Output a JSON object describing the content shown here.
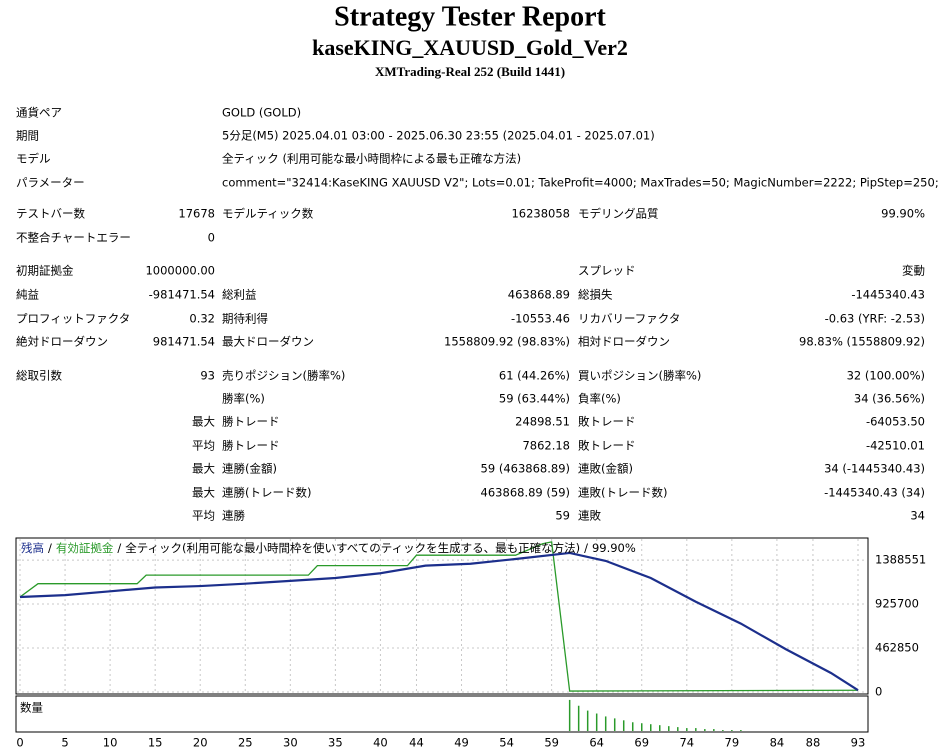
{
  "header": {
    "title": "Strategy Tester Report",
    "subtitle": "kaseKING_XAUUSD_Gold_Ver2",
    "server": "XMTrading-Real 252 (Build 1441)"
  },
  "info": [
    {
      "label": "通貨ペア",
      "value": "GOLD (GOLD)"
    },
    {
      "label": "期間",
      "value": "5分足(M5) 2025.04.01 03:00 - 2025.06.30 23:55 (2025.04.01 - 2025.07.01)"
    },
    {
      "label": "モデル",
      "value": "全ティック (利用可能な最小時間枠による最も正確な方法)"
    },
    {
      "label": "パラメーター",
      "value": "comment=\"32414:KaseKING XAUUSD V2\"; Lots=0.01; TakeProfit=4000; MaxTrades=50; MagicNumber=2222; PipStep=250;"
    }
  ],
  "table": {
    "rows": [
      [
        "テストバー数",
        "17678",
        "モデルティック数",
        "16238058",
        "モデリング品質",
        "99.90%"
      ],
      [
        "不整合チャートエラー",
        "0",
        null,
        null,
        null,
        null
      ],
      [
        "初期証拠金",
        "1000000.00",
        null,
        null,
        "スプレッド",
        "変動"
      ],
      [
        "純益",
        "-981471.54",
        "総利益",
        "463868.89",
        "総損失",
        "-1445340.43"
      ],
      [
        "プロフィットファクタ",
        "0.32",
        "期待利得",
        "-10553.46",
        "リカバリーファクタ",
        "-0.63 (YRF: -2.53)"
      ],
      [
        "絶対ドローダウン",
        "981471.54",
        "最大ドローダウン",
        "1558809.92 (98.83%)",
        "相対ドローダウン",
        "98.83% (1558809.92)"
      ],
      [
        "総取引数",
        "93",
        "売りポジション(勝率%)",
        "61 (44.26%)",
        "買いポジション(勝率%)",
        "32 (100.00%)"
      ],
      [
        null,
        null,
        "勝率(%)",
        "59 (63.44%)",
        "負率(%)",
        "34 (36.56%)"
      ],
      [
        null,
        "最大",
        "勝トレード",
        "24898.51",
        "敗トレード",
        "-64053.50"
      ],
      [
        null,
        "平均",
        "勝トレード",
        "7862.18",
        "敗トレード",
        "-42510.01"
      ],
      [
        null,
        "最大",
        "連勝(金額)",
        "59 (463868.89)",
        "連敗(金額)",
        "34 (-1445340.43)"
      ],
      [
        null,
        "最大",
        "連勝(トレード数)",
        "463868.89 (59)",
        "連敗(トレード数)",
        "-1445340.43 (34)"
      ],
      [
        null,
        "平均",
        "連勝",
        "59",
        "連敗",
        "34"
      ]
    ]
  },
  "chart_data": {
    "type": "line",
    "separator": "/",
    "note": "全ティック(利用可能な最小時間枠を使いすべてのティックを生成する、最も正確な方法)",
    "quality": "99.90%",
    "xlim": [
      0,
      93
    ],
    "xticks": [
      0,
      5,
      10,
      15,
      20,
      25,
      30,
      35,
      40,
      44,
      49,
      54,
      59,
      64,
      69,
      74,
      79,
      84,
      88,
      93
    ],
    "ylim": [
      0,
      1600000
    ],
    "yticks": [
      0,
      462850,
      925700,
      1388551
    ],
    "grid": true,
    "series": [
      {
        "name": "残高",
        "color": "#1c2f8c",
        "x": [
          0,
          5,
          10,
          15,
          20,
          25,
          30,
          35,
          40,
          45,
          50,
          55,
          61,
          65,
          70,
          75,
          80,
          85,
          90,
          93
        ],
        "values": [
          1000000,
          1020000,
          1060000,
          1100000,
          1115000,
          1140000,
          1170000,
          1200000,
          1250000,
          1330000,
          1350000,
          1400000,
          1463869,
          1380000,
          1200000,
          950000,
          720000,
          450000,
          200000,
          18528
        ]
      },
      {
        "name": "有効証拠金",
        "color": "#2a9a2a",
        "x": [
          0,
          2,
          13,
          14,
          32,
          33,
          43,
          44,
          55,
          58,
          59,
          61,
          93
        ],
        "values": [
          1000000,
          1140000,
          1140000,
          1230000,
          1230000,
          1330000,
          1330000,
          1440000,
          1440000,
          1560000,
          1580000,
          10000,
          18528
        ]
      }
    ],
    "volume": {
      "name": "数量",
      "color": "#2a9a2a",
      "x": [
        61,
        62,
        63,
        64,
        65,
        66,
        67,
        68,
        69,
        70,
        71,
        72,
        73,
        74,
        75,
        76,
        77,
        78,
        79,
        80
      ],
      "values": [
        0.32,
        0.26,
        0.21,
        0.18,
        0.15,
        0.13,
        0.11,
        0.09,
        0.08,
        0.07,
        0.06,
        0.05,
        0.04,
        0.03,
        0.03,
        0.02,
        0.02,
        0.01,
        0.01,
        0.01
      ],
      "ylim": [
        0,
        0.35
      ]
    }
  }
}
